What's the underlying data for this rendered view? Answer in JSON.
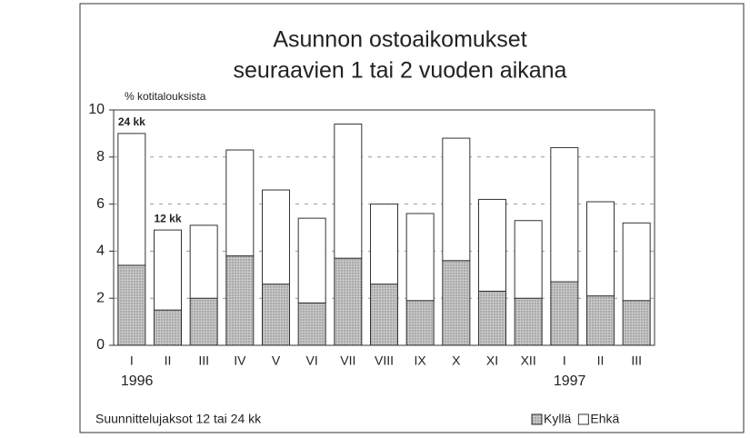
{
  "chart_data": {
    "type": "stacked_bar",
    "title": [
      "Asunnon ostoaikomukset",
      "seuraavien 1 tai 2 vuoden aikana"
    ],
    "y_label": "% kotitalouksista",
    "footnote": "Suunnittelujaksot 12 tai 24 kk",
    "categories": [
      "I",
      "II",
      "III",
      "IV",
      "V",
      "VI",
      "VII",
      "VIII",
      "IX",
      "X",
      "XI",
      "XII",
      "I",
      "II",
      "III"
    ],
    "year_labels": [
      {
        "text": "1996",
        "category": 0
      },
      {
        "text": "1997",
        "category": 12
      }
    ],
    "annotations": [
      {
        "text": "24 kk",
        "category": 0
      },
      {
        "text": "12 kk",
        "category": 1
      }
    ],
    "series": [
      {
        "name": "Kyllä",
        "color": "#c8c8c8",
        "values": [
          3.4,
          1.5,
          2.0,
          3.8,
          2.6,
          1.8,
          3.7,
          2.6,
          1.9,
          3.6,
          2.3,
          2.0,
          2.7,
          2.1,
          1.9
        ]
      },
      {
        "name": "Ehkä",
        "color": "#ffffff",
        "values": [
          5.6,
          3.4,
          3.1,
          4.5,
          4.0,
          3.6,
          5.7,
          3.4,
          3.7,
          5.2,
          3.9,
          3.3,
          5.7,
          4.0,
          3.3
        ]
      }
    ],
    "ylim": [
      0,
      10
    ],
    "yticks": [
      0,
      2,
      4,
      6,
      8,
      10
    ],
    "grid": true
  }
}
